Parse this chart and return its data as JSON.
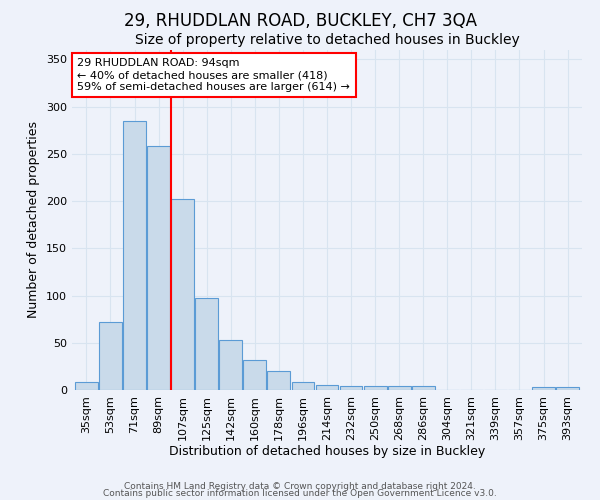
{
  "title": "29, RHUDDLAN ROAD, BUCKLEY, CH7 3QA",
  "subtitle": "Size of property relative to detached houses in Buckley",
  "xlabel": "Distribution of detached houses by size in Buckley",
  "ylabel": "Number of detached properties",
  "footnote1": "Contains HM Land Registry data © Crown copyright and database right 2024.",
  "footnote2": "Contains public sector information licensed under the Open Government Licence v3.0.",
  "categories": [
    "35sqm",
    "53sqm",
    "71sqm",
    "89sqm",
    "107sqm",
    "125sqm",
    "142sqm",
    "160sqm",
    "178sqm",
    "196sqm",
    "214sqm",
    "232sqm",
    "250sqm",
    "268sqm",
    "286sqm",
    "304sqm",
    "321sqm",
    "339sqm",
    "357sqm",
    "375sqm",
    "393sqm"
  ],
  "values": [
    8,
    72,
    285,
    258,
    202,
    97,
    53,
    32,
    20,
    8,
    5,
    4,
    4,
    4,
    4,
    0,
    0,
    0,
    0,
    3,
    3
  ],
  "bar_color": "#c9daea",
  "bar_edge_color": "#5b9bd5",
  "red_line_x": 3.5,
  "annotation_line1": "29 RHUDDLAN ROAD: 94sqm",
  "annotation_line2": "← 40% of detached houses are smaller (418)",
  "annotation_line3": "59% of semi-detached houses are larger (614) →",
  "annotation_box_color": "white",
  "annotation_box_edge_color": "red",
  "red_line_color": "red",
  "ylim": [
    0,
    360
  ],
  "yticks": [
    0,
    50,
    100,
    150,
    200,
    250,
    300,
    350
  ],
  "background_color": "#eef2fa",
  "grid_color": "#d8e4f0",
  "title_fontsize": 12,
  "subtitle_fontsize": 10,
  "axis_label_fontsize": 9,
  "tick_fontsize": 8,
  "annotation_fontsize": 8,
  "footnote_fontsize": 6.5
}
